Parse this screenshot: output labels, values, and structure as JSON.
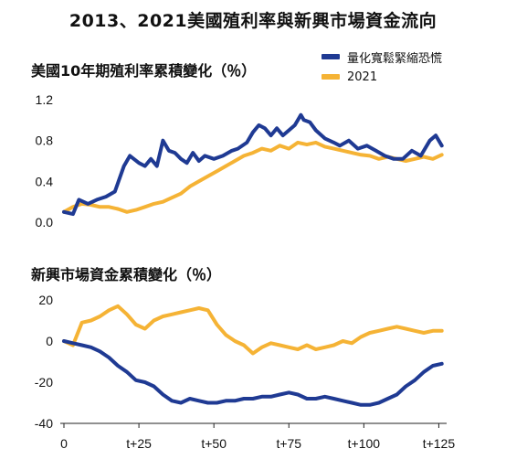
{
  "title": "2013、2021美國殖利率與新興市場資金流向",
  "legend": [
    {
      "label": "量化寬鬆緊縮恐慌",
      "color": "#1f3a93"
    },
    {
      "label": "2021",
      "color": "#f5b335"
    }
  ],
  "chart_data": [
    {
      "type": "line",
      "title": "美國10年期殖利率累積變化（％）",
      "ylim": [
        0,
        1.2
      ],
      "yticks": [
        "0.0",
        "0.4",
        "0.8",
        "1.2"
      ],
      "xlim": [
        0,
        127
      ],
      "series": [
        {
          "name": "量化寬鬆緊縮恐慌",
          "color": "#1f3a93",
          "x": [
            0,
            3,
            5,
            8,
            11,
            14,
            17,
            20,
            22,
            25,
            27,
            29,
            31,
            33,
            35,
            37,
            39,
            41,
            43,
            45,
            47,
            50,
            53,
            56,
            58,
            61,
            63,
            65,
            67,
            69,
            71,
            73,
            75,
            77,
            79,
            80,
            82,
            84,
            87,
            90,
            92,
            95,
            98,
            101,
            104,
            107,
            110,
            113,
            116,
            119,
            122,
            124,
            126
          ],
          "y": [
            0.1,
            0.08,
            0.22,
            0.18,
            0.22,
            0.25,
            0.3,
            0.55,
            0.65,
            0.58,
            0.55,
            0.62,
            0.55,
            0.8,
            0.7,
            0.68,
            0.62,
            0.58,
            0.68,
            0.6,
            0.65,
            0.62,
            0.65,
            0.7,
            0.72,
            0.78,
            0.88,
            0.95,
            0.92,
            0.85,
            0.92,
            0.85,
            0.9,
            0.95,
            1.05,
            1.0,
            0.98,
            0.9,
            0.82,
            0.78,
            0.75,
            0.8,
            0.72,
            0.75,
            0.7,
            0.65,
            0.62,
            0.62,
            0.7,
            0.65,
            0.8,
            0.85,
            0.75
          ]
        },
        {
          "name": "2021",
          "color": "#f5b335",
          "x": [
            0,
            3,
            6,
            9,
            12,
            15,
            18,
            21,
            24,
            27,
            30,
            33,
            36,
            39,
            42,
            45,
            48,
            51,
            54,
            57,
            60,
            63,
            66,
            69,
            72,
            75,
            78,
            81,
            84,
            87,
            90,
            93,
            96,
            99,
            102,
            105,
            108,
            111,
            114,
            117,
            120,
            123,
            126
          ],
          "y": [
            0.1,
            0.15,
            0.18,
            0.17,
            0.15,
            0.15,
            0.13,
            0.1,
            0.12,
            0.15,
            0.18,
            0.2,
            0.24,
            0.28,
            0.35,
            0.4,
            0.45,
            0.5,
            0.55,
            0.6,
            0.65,
            0.68,
            0.72,
            0.7,
            0.75,
            0.72,
            0.78,
            0.76,
            0.78,
            0.74,
            0.72,
            0.7,
            0.68,
            0.66,
            0.65,
            0.62,
            0.64,
            0.62,
            0.6,
            0.62,
            0.64,
            0.62,
            0.66
          ]
        }
      ]
    },
    {
      "type": "line",
      "title": "新興市場資金累積變化（％）",
      "ylim": [
        -40,
        20
      ],
      "yticks": [
        "-40",
        "-20",
        "0",
        "20"
      ],
      "xlim": [
        0,
        127
      ],
      "xticks": [
        {
          "value": 0,
          "label": "0"
        },
        {
          "value": 25,
          "label": "t+25"
        },
        {
          "value": 50,
          "label": "t+50"
        },
        {
          "value": 75,
          "label": "t+75"
        },
        {
          "value": 100,
          "label": "t+100"
        },
        {
          "value": 125,
          "label": "t+125"
        }
      ],
      "series": [
        {
          "name": "量化寬鬆緊縮恐慌",
          "color": "#1f3a93",
          "x": [
            0,
            3,
            6,
            9,
            12,
            15,
            18,
            21,
            24,
            27,
            30,
            33,
            36,
            39,
            42,
            45,
            48,
            51,
            54,
            57,
            60,
            63,
            66,
            69,
            72,
            75,
            78,
            81,
            84,
            87,
            90,
            93,
            96,
            99,
            102,
            105,
            108,
            111,
            114,
            117,
            120,
            123,
            126
          ],
          "y": [
            0,
            -1,
            -2,
            -3,
            -5,
            -8,
            -12,
            -15,
            -19,
            -20,
            -22,
            -26,
            -29,
            -30,
            -28,
            -29,
            -30,
            -30,
            -29,
            -29,
            -28,
            -28,
            -27,
            -27,
            -26,
            -25,
            -26,
            -28,
            -28,
            -27,
            -28,
            -29,
            -30,
            -31,
            -31,
            -30,
            -28,
            -26,
            -22,
            -19,
            -15,
            -12,
            -11
          ]
        },
        {
          "name": "2021",
          "color": "#f5b335",
          "x": [
            0,
            3,
            6,
            9,
            12,
            15,
            18,
            21,
            24,
            27,
            30,
            33,
            36,
            39,
            42,
            45,
            48,
            51,
            54,
            57,
            60,
            63,
            66,
            69,
            72,
            75,
            78,
            81,
            84,
            87,
            90,
            93,
            96,
            99,
            102,
            105,
            108,
            111,
            114,
            117,
            120,
            123,
            126
          ],
          "y": [
            0,
            -2,
            9,
            10,
            12,
            15,
            17,
            13,
            8,
            6,
            10,
            12,
            13,
            14,
            15,
            16,
            15,
            8,
            3,
            0,
            -2,
            -6,
            -3,
            -1,
            -2,
            -3,
            -4,
            -2,
            -4,
            -3,
            -2,
            0,
            -1,
            2,
            4,
            5,
            6,
            7,
            6,
            5,
            4,
            5,
            5
          ]
        }
      ]
    }
  ]
}
